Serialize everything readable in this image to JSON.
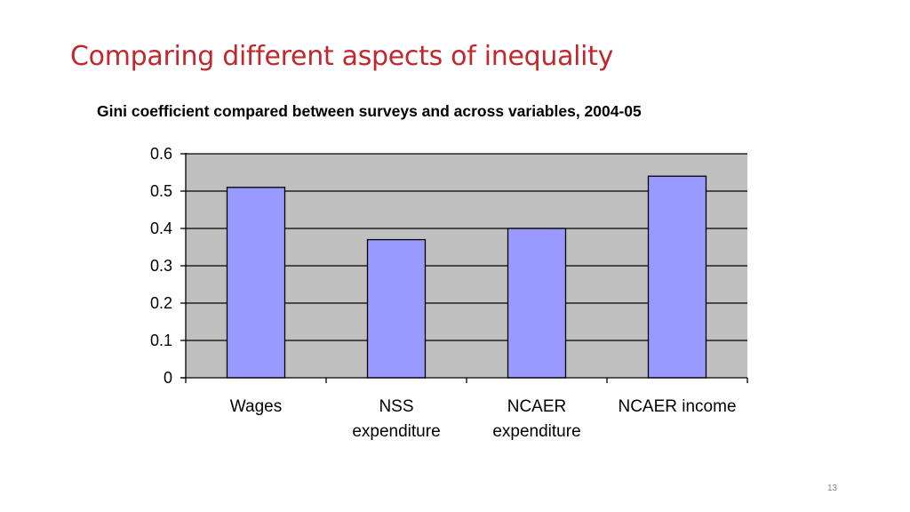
{
  "slide": {
    "title": "Comparing different aspects of inequality",
    "page_number": "13"
  },
  "colors": {
    "title": "#c0282d",
    "bar_fill": "#9999ff",
    "plot_background": "#c0c0c0",
    "gridline": "#000000"
  },
  "chart_data": {
    "type": "bar",
    "title": "Gini coefficient compared between surveys and across variables, 2004-05",
    "categories": [
      [
        "Wages"
      ],
      [
        "NSS",
        "expenditure"
      ],
      [
        "NCAER",
        "expenditure"
      ],
      [
        "NCAER income"
      ]
    ],
    "values": [
      0.51,
      0.37,
      0.4,
      0.54
    ],
    "ylim": [
      0,
      0.6
    ],
    "yticks": [
      "0",
      "0.1",
      "0.2",
      "0.3",
      "0.4",
      "0.5",
      "0.6"
    ],
    "ytick_values": [
      0,
      0.1,
      0.2,
      0.3,
      0.4,
      0.5,
      0.6
    ],
    "xlabel": "",
    "ylabel": "",
    "grid": true,
    "legend": "none"
  }
}
